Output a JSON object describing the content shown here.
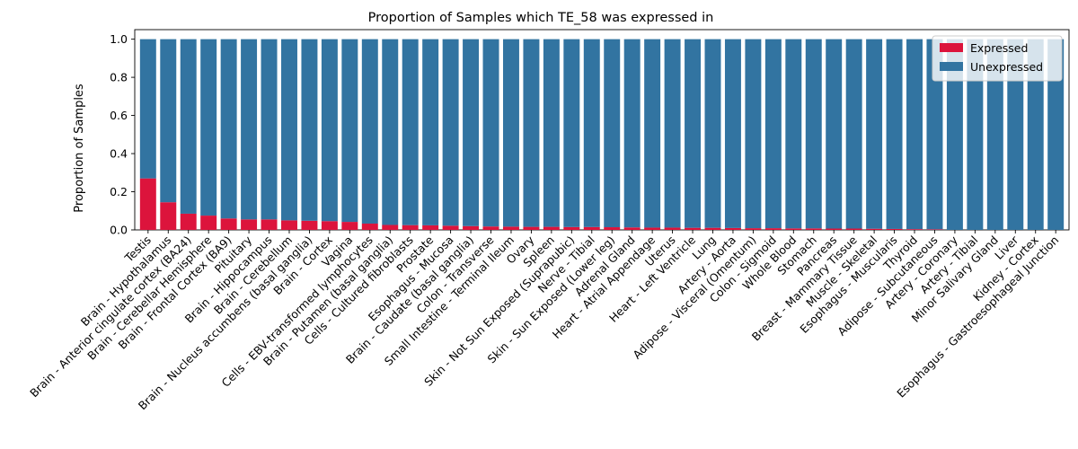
{
  "chart_data": {
    "type": "bar",
    "stacked": true,
    "title": "Proportion of Samples which TE_58 was expressed in",
    "xlabel": "",
    "ylabel": "Proportion of Samples",
    "ylim": [
      0,
      1.05
    ],
    "yticks": [
      "0.0",
      "0.2",
      "0.4",
      "0.6",
      "0.8",
      "1.0"
    ],
    "grid": false,
    "legend_position": "top-right",
    "categories": [
      "Testis",
      "Brain - Hypothalamus",
      "Brain - Anterior cingulate cortex (BA24)",
      "Brain - Cerebellar Hemisphere",
      "Brain - Frontal Cortex (BA9)",
      "Pituitary",
      "Brain - Hippocampus",
      "Brain - Cerebellum",
      "Brain - Nucleus accumbens (basal ganglia)",
      "Brain - Cortex",
      "Vagina",
      "Cells - EBV-transformed lymphocytes",
      "Brain - Putamen (basal ganglia)",
      "Cells - Cultured fibroblasts",
      "Prostate",
      "Esophagus - Mucosa",
      "Brain - Caudate (basal ganglia)",
      "Colon - Transverse",
      "Small Intestine - Terminal Ileum",
      "Ovary",
      "Spleen",
      "Skin - Not Sun Exposed (Suprapubic)",
      "Nerve - Tibial",
      "Skin - Sun Exposed (Lower leg)",
      "Adrenal Gland",
      "Heart - Atrial Appendage",
      "Uterus",
      "Heart - Left Ventricle",
      "Lung",
      "Artery - Aorta",
      "Adipose - Visceral (Omentum)",
      "Colon - Sigmoid",
      "Whole Blood",
      "Stomach",
      "Pancreas",
      "Breast - Mammary Tissue",
      "Muscle - Skeletal",
      "Esophagus - Muscularis",
      "Thyroid",
      "Adipose - Subcutaneous",
      "Artery - Coronary",
      "Artery - Tibial",
      "Minor Salivary Gland",
      "Liver",
      "Kidney - Cortex",
      "Esophagus - Gastroesophageal Junction"
    ],
    "series": [
      {
        "name": "Expressed",
        "color": "#dc143c",
        "values": [
          0.27,
          0.145,
          0.085,
          0.075,
          0.06,
          0.055,
          0.055,
          0.05,
          0.048,
          0.046,
          0.042,
          0.033,
          0.026,
          0.025,
          0.024,
          0.022,
          0.02,
          0.018,
          0.017,
          0.016,
          0.016,
          0.015,
          0.015,
          0.014,
          0.013,
          0.012,
          0.012,
          0.011,
          0.011,
          0.01,
          0.009,
          0.009,
          0.008,
          0.008,
          0.007,
          0.007,
          0.006,
          0.005,
          0.004,
          0.003,
          0,
          0,
          0,
          0,
          0,
          0
        ]
      },
      {
        "name": "Unexpressed",
        "color": "#3274a1",
        "values": [
          0.73,
          0.855,
          0.915,
          0.925,
          0.94,
          0.945,
          0.945,
          0.95,
          0.952,
          0.954,
          0.958,
          0.967,
          0.974,
          0.975,
          0.976,
          0.978,
          0.98,
          0.982,
          0.983,
          0.984,
          0.984,
          0.985,
          0.985,
          0.986,
          0.987,
          0.988,
          0.988,
          0.989,
          0.989,
          0.99,
          0.991,
          0.991,
          0.992,
          0.992,
          0.993,
          0.993,
          0.994,
          0.995,
          0.996,
          0.997,
          1.0,
          1.0,
          1.0,
          1.0,
          1.0,
          1.0
        ]
      }
    ]
  }
}
